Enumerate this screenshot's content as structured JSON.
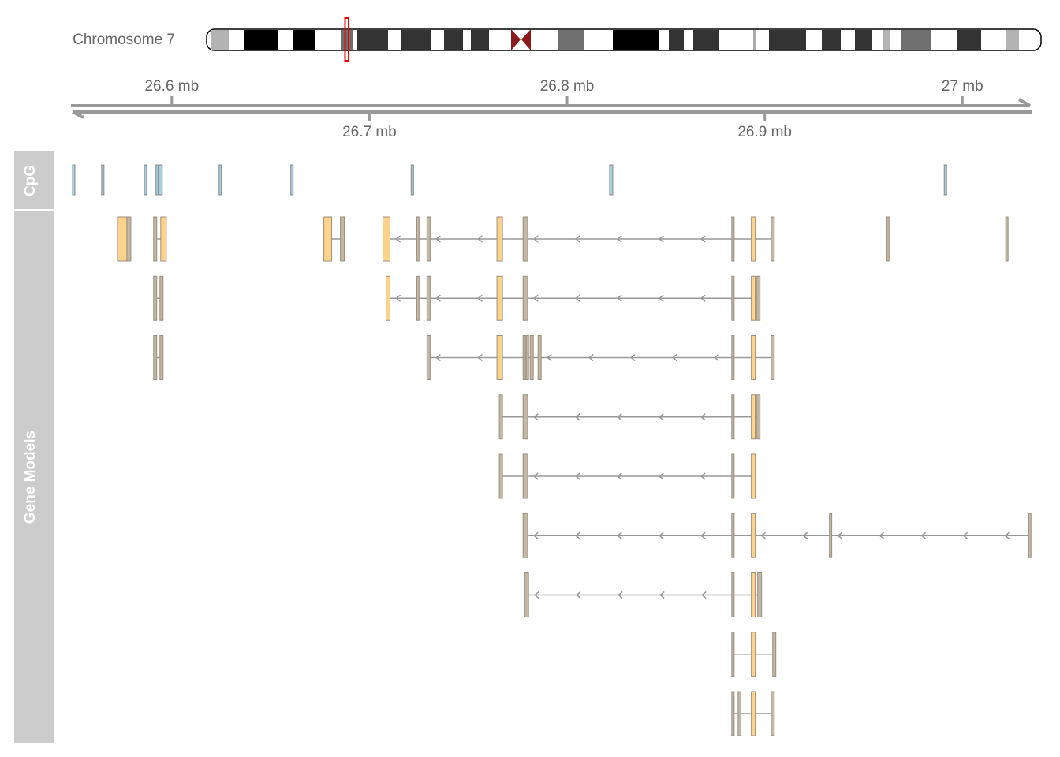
{
  "chart_data": {
    "type": "genome-tracks",
    "ideogram_label": "Chromosome 7",
    "xlim": [
      26.549,
      27.035
    ],
    "xticks": [
      {
        "value": 26.6,
        "label": "26.6 mb"
      },
      {
        "value": 26.7,
        "label": "26.7 mb"
      },
      {
        "value": 26.8,
        "label": "26.8 mb"
      },
      {
        "value": 26.9,
        "label": "26.9 mb"
      },
      {
        "value": 27,
        "label": "27 mb"
      }
    ],
    "cpg_track": {
      "name": "CpG",
      "color": "#a8cfe0",
      "regions": [
        [
          26.5498,
          26.551
        ],
        [
          26.5645,
          26.5657
        ],
        [
          26.5861,
          26.5873
        ],
        [
          26.592,
          26.5932
        ],
        [
          26.5932,
          26.5952
        ],
        [
          26.6239,
          26.6251
        ],
        [
          26.6602,
          26.6614
        ],
        [
          26.7211,
          26.7223
        ],
        [
          26.8215,
          26.8231
        ],
        [
          26.9908,
          26.992
        ]
      ]
    },
    "gene_track": {
      "name": "Gene Models",
      "coding_color": "#fdd38b",
      "utr_color": "#c2b8a3",
      "strand": "-",
      "rows": [
        [
          [
            [
              26.5725,
              26.5773,
              "coding"
            ],
            [
              26.5773,
              26.5793,
              "utr"
            ]
          ],
          [
            [
              26.5908,
              26.5924,
              "utr"
            ],
            [
              26.5944,
              26.5972,
              "coding"
            ]
          ],
          [
            [
              26.6769,
              26.6809,
              "coding"
            ],
            [
              26.6853,
              26.6873,
              "utr"
            ]
          ],
          [
            [
              26.7068,
              26.7104,
              "coding"
            ],
            [
              26.7239,
              26.7251,
              "utr"
            ],
            [
              26.7291,
              26.7307,
              "utr"
            ],
            [
              26.7645,
              26.7673,
              "coding"
            ],
            [
              26.7777,
              26.7801,
              "utr"
            ],
            [
              26.8833,
              26.8845,
              "utr"
            ],
            [
              26.8932,
              26.8952,
              "coding"
            ],
            [
              26.9032,
              26.9048,
              "utr"
            ]
          ],
          [
            [
              26.9618,
              26.9629,
              "utr"
            ]
          ],
          [
            [
              27.0219,
              27.0231,
              "utr"
            ]
          ]
        ],
        [
          [
            [
              26.5908,
              26.5924,
              "utr"
            ],
            [
              26.594,
              26.5956,
              "utr"
            ]
          ],
          [
            [
              26.7084,
              26.7104,
              "coding"
            ],
            [
              26.7239,
              26.7251,
              "utr"
            ],
            [
              26.7291,
              26.7307,
              "utr"
            ],
            [
              26.7645,
              26.7673,
              "coding"
            ],
            [
              26.7777,
              26.7801,
              "utr"
            ],
            [
              26.8833,
              26.8845,
              "utr"
            ],
            [
              26.8932,
              26.8952,
              "coding"
            ],
            [
              26.896,
              26.8976,
              "utr"
            ]
          ]
        ],
        [
          [
            [
              26.5908,
              26.5924,
              "utr"
            ],
            [
              26.594,
              26.5956,
              "utr"
            ]
          ],
          [
            [
              26.7291,
              26.7307,
              "utr"
            ],
            [
              26.7645,
              26.7673,
              "coding"
            ],
            [
              26.7777,
              26.7789,
              "utr"
            ],
            [
              26.7793,
              26.7805,
              "utr"
            ],
            [
              26.7813,
              26.7829,
              "utr"
            ],
            [
              26.7853,
              26.7869,
              "utr"
            ],
            [
              26.8833,
              26.8845,
              "utr"
            ],
            [
              26.8932,
              26.8952,
              "coding"
            ],
            [
              26.9032,
              26.9048,
              "utr"
            ]
          ]
        ],
        [
          [
            [
              26.7657,
              26.7673,
              "utr"
            ],
            [
              26.7777,
              26.7801,
              "utr"
            ],
            [
              26.8833,
              26.8845,
              "utr"
            ],
            [
              26.8932,
              26.8952,
              "coding"
            ],
            [
              26.896,
              26.8976,
              "utr"
            ]
          ]
        ],
        [
          [
            [
              26.7657,
              26.7673,
              "utr"
            ],
            [
              26.7777,
              26.7801,
              "utr"
            ],
            [
              26.8833,
              26.8845,
              "utr"
            ],
            [
              26.8932,
              26.8952,
              "coding"
            ]
          ]
        ],
        [
          [
            [
              26.7777,
              26.7801,
              "utr"
            ],
            [
              26.8833,
              26.8845,
              "utr"
            ],
            [
              26.8932,
              26.8952,
              "coding"
            ],
            [
              26.9327,
              26.9339,
              "utr"
            ],
            [
              27.0335,
              27.0347,
              "utr"
            ]
          ]
        ],
        [
          [
            [
              26.7785,
              26.7805,
              "utr"
            ],
            [
              26.8833,
              26.8845,
              "utr"
            ],
            [
              26.8932,
              26.8952,
              "coding"
            ],
            [
              26.8964,
              26.8984,
              "utr"
            ]
          ]
        ],
        [
          [
            [
              26.8833,
              26.8845,
              "utr"
            ],
            [
              26.8932,
              26.8952,
              "coding"
            ],
            [
              26.904,
              26.9056,
              "utr"
            ]
          ]
        ],
        [
          [
            [
              26.8833,
              26.8845,
              "utr"
            ],
            [
              26.8865,
              26.888,
              "utr"
            ],
            [
              26.8932,
              26.8952,
              "coding"
            ],
            [
              26.9032,
              26.9048,
              "utr"
            ]
          ]
        ]
      ]
    }
  }
}
